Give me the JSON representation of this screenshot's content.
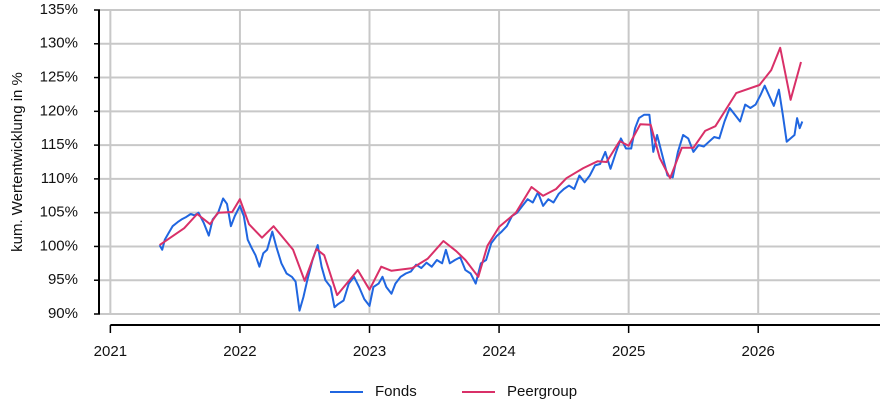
{
  "chart_data": {
    "type": "line",
    "y_label": "kum. Wertentwicklung in %",
    "xlim": [
      2020.92,
      2026.94
    ],
    "xticks": [
      2021,
      2022,
      2023,
      2024,
      2025,
      2026
    ],
    "ylim": [
      90,
      135
    ],
    "yticks": [
      {
        "value": 90,
        "label": "90%"
      },
      {
        "value": 95,
        "label": "95%"
      },
      {
        "value": 100,
        "label": "100%"
      },
      {
        "value": 105,
        "label": "105%"
      },
      {
        "value": 110,
        "label": "110%"
      },
      {
        "value": 115,
        "label": "115%"
      },
      {
        "value": 120,
        "label": "120%"
      },
      {
        "value": 125,
        "label": "125%"
      },
      {
        "value": 130,
        "label": "130%"
      },
      {
        "value": 135,
        "label": "135%"
      }
    ],
    "grid": true,
    "legend": "bottom",
    "series": [
      {
        "name": "Fonds",
        "color": "#2066e0",
        "x": [
          2021.38,
          2021.4,
          2021.42,
          2021.45,
          2021.48,
          2021.52,
          2021.55,
          2021.58,
          2021.62,
          2021.65,
          2021.68,
          2021.72,
          2021.76,
          2021.79,
          2021.83,
          2021.87,
          2021.9,
          2021.93,
          2021.96,
          2022.0,
          2022.03,
          2022.06,
          2022.09,
          2022.12,
          2022.15,
          2022.18,
          2022.21,
          2022.25,
          2022.28,
          2022.32,
          2022.36,
          2022.4,
          2022.43,
          2022.46,
          2022.49,
          2022.52,
          2022.56,
          2022.6,
          2022.63,
          2022.66,
          2022.7,
          2022.73,
          2022.76,
          2022.8,
          2022.84,
          2022.88,
          2022.92,
          2022.96,
          2023.0,
          2023.03,
          2023.07,
          2023.1,
          2023.13,
          2023.17,
          2023.2,
          2023.24,
          2023.28,
          2023.32,
          2023.36,
          2023.4,
          2023.44,
          2023.48,
          2023.52,
          2023.56,
          2023.59,
          2023.62,
          2023.66,
          2023.7,
          2023.74,
          2023.78,
          2023.82,
          2023.86,
          2023.9,
          2023.94,
          2023.98,
          2024.02,
          2024.06,
          2024.1,
          2024.14,
          2024.18,
          2024.22,
          2024.26,
          2024.3,
          2024.34,
          2024.38,
          2024.42,
          2024.46,
          2024.5,
          2024.54,
          2024.58,
          2024.62,
          2024.66,
          2024.7,
          2024.74,
          2024.78,
          2024.82,
          2024.86,
          2024.9,
          2024.94,
          2024.98,
          2025.02,
          2025.05,
          2025.08,
          2025.12,
          2025.16,
          2025.19,
          2025.22,
          2025.26,
          2025.3,
          2025.34,
          2025.38,
          2025.42,
          2025.46,
          2025.5,
          2025.54,
          2025.58,
          2025.62,
          2025.66,
          2025.7,
          2025.74,
          2025.78,
          2025.82,
          2025.86,
          2025.9,
          2025.94,
          2025.98,
          2026.02,
          2026.05,
          2026.08,
          2026.12,
          2026.16,
          2026.19,
          2026.22,
          2026.25,
          2026.28,
          2026.3,
          2026.32,
          2026.34
        ],
        "values": [
          100.2,
          99.5,
          101,
          102,
          103,
          103.6,
          104,
          104.3,
          104.8,
          104.6,
          105,
          103.5,
          101.6,
          104,
          104.9,
          107.1,
          106.3,
          103,
          104.5,
          106,
          104.5,
          101,
          99.8,
          98.7,
          97,
          99,
          99.5,
          102.2,
          100,
          97.5,
          96,
          95.5,
          94.8,
          90.5,
          92.5,
          95,
          98,
          100.2,
          97,
          95,
          94,
          91,
          91.5,
          92,
          94.5,
          95.5,
          94,
          92.2,
          91.2,
          94,
          94.5,
          95.5,
          94,
          93,
          94.5,
          95.5,
          96,
          96.3,
          97.3,
          96.8,
          97.6,
          97,
          98,
          97.5,
          99.5,
          97.5,
          98,
          98.4,
          96.5,
          96,
          94.5,
          97.5,
          98,
          100.5,
          101.5,
          102.2,
          103,
          104.5,
          105,
          106,
          107,
          106.5,
          108,
          106,
          107,
          106.5,
          107.8,
          108.5,
          109,
          108.5,
          110.5,
          109.5,
          110.5,
          112,
          112.2,
          114,
          111.5,
          113.8,
          116,
          114.5,
          114.5,
          117.5,
          119,
          119.5,
          119.5,
          114,
          116.5,
          113.5,
          110.5,
          110.2,
          114,
          116.5,
          116,
          114,
          115,
          114.8,
          115.5,
          116.2,
          116,
          118.5,
          120.5,
          119.5,
          118.5,
          121,
          120.5,
          121,
          122.5,
          123.8,
          122.5,
          120.8,
          123.2,
          119.5,
          115.5,
          116,
          116.5,
          119,
          117.5,
          118.5
        ]
      },
      {
        "name": "Peergroup",
        "color": "#d93068",
        "x": [
          2021.38,
          2021.57,
          2021.67,
          2021.77,
          2021.83,
          2021.94,
          2022.0,
          2022.07,
          2022.17,
          2022.26,
          2022.41,
          2022.5,
          2022.59,
          2022.65,
          2022.75,
          2022.91,
          2023.0,
          2023.09,
          2023.17,
          2023.33,
          2023.45,
          2023.57,
          2023.67,
          2023.74,
          2023.84,
          2023.91,
          2024.0,
          2024.13,
          2024.25,
          2024.34,
          2024.44,
          2024.52,
          2024.65,
          2024.76,
          2024.83,
          2024.93,
          2025.0,
          2025.09,
          2025.17,
          2025.24,
          2025.32,
          2025.41,
          2025.5,
          2025.59,
          2025.67,
          2025.83,
          2026.01,
          2026.1,
          2026.17,
          2026.25,
          2026.33
        ],
        "values": [
          100.2,
          102.7,
          104.8,
          103.3,
          105,
          105.1,
          107,
          103.3,
          101.3,
          103,
          99.5,
          94.9,
          99.6,
          98.7,
          92.8,
          96.5,
          93.6,
          97,
          96.4,
          96.8,
          98.2,
          100.8,
          99.3,
          98,
          95.5,
          100.1,
          102.9,
          105,
          108.8,
          107.5,
          108.5,
          110.1,
          111.6,
          112.6,
          112.5,
          115.6,
          114.9,
          118.1,
          118,
          113.1,
          110.1,
          114.6,
          114.6,
          117.1,
          117.8,
          122.7,
          123.9,
          126.1,
          129.4,
          121.7,
          127.3
        ]
      }
    ]
  }
}
